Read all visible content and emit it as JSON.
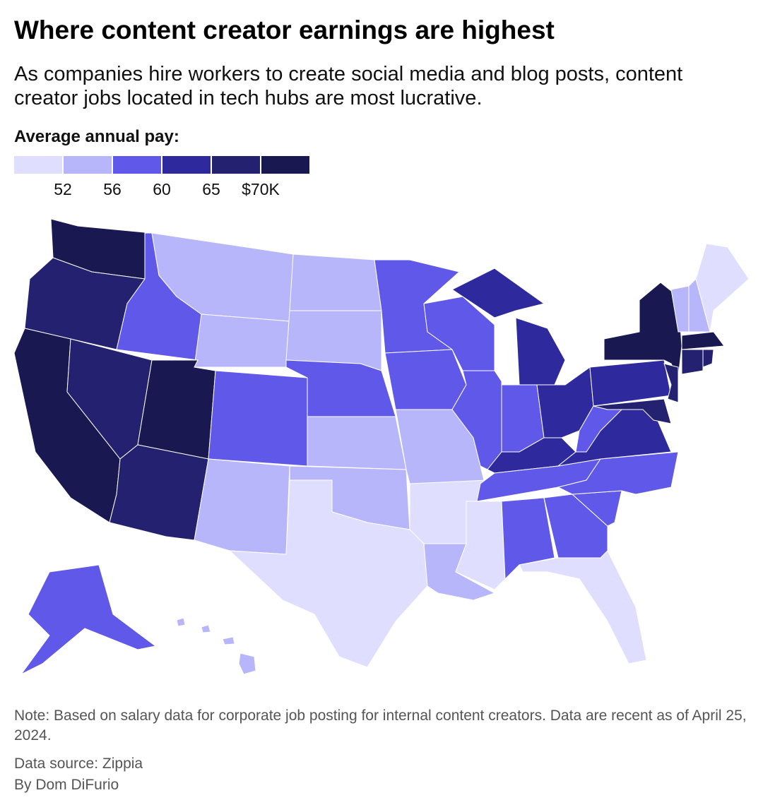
{
  "title": "Where content creator earnings are highest",
  "subtitle": "As companies hire workers to create social media and blog posts, content creator jobs located in tech hubs are most lucrative.",
  "legend": {
    "title": "Average annual pay:",
    "colors": [
      "#e0deff",
      "#b8b6fb",
      "#5f58e8",
      "#2e2a9e",
      "#242170",
      "#1a1850"
    ],
    "breaks": [
      52,
      56,
      60,
      65,
      {
        "value": 70,
        "label": "$70K"
      }
    ]
  },
  "regions": [
    {
      "color": "#1a1850"
    },
    {
      "color": "#242170"
    },
    {
      "color": "#1a1850"
    },
    {
      "color": "#242170"
    },
    {
      "color": "#5f58e8"
    },
    {
      "color": "#b8b6fb"
    },
    {
      "color": "#b8b6fb"
    },
    {
      "color": "#1a1850"
    },
    {
      "color": "#242170"
    },
    {
      "color": "#5f58e8"
    },
    {
      "color": "#b8b6fb"
    },
    {
      "color": "#b8b6fb"
    },
    {
      "color": "#b8b6fb"
    },
    {
      "color": "#5f58e8"
    },
    {
      "color": "#b8b6fb"
    },
    {
      "color": "#b8b6fb"
    },
    {
      "color": "#e0deff"
    },
    {
      "color": "#5f58e8"
    },
    {
      "color": "#5f58e8"
    },
    {
      "color": "#b8b6fb"
    },
    {
      "color": "#e0deff"
    },
    {
      "color": "#b8b6fb"
    },
    {
      "color": "#5f58e8"
    },
    {
      "color": "#5f58e8"
    },
    {
      "color": "#2e2a9e"
    },
    {
      "color": "#2e2a9e"
    },
    {
      "color": "#5f58e8"
    },
    {
      "color": "#2e2a9e"
    },
    {
      "color": "#2e2a9e"
    },
    {
      "color": "#5f58e8"
    },
    {
      "color": "#e0deff"
    },
    {
      "color": "#5f58e8"
    },
    {
      "color": "#5f58e8"
    },
    {
      "color": "#e0deff"
    },
    {
      "color": "#5f58e8"
    },
    {
      "color": "#5f58e8"
    },
    {
      "color": "#2e2a9e"
    },
    {
      "color": "#5f58e8"
    },
    {
      "color": "#2e2a9e"
    },
    {
      "color": "#1a1850"
    },
    {
      "color": "#242170"
    },
    {
      "color": "#242170"
    },
    {
      "color": "#b8b6fb"
    },
    {
      "color": "#b8b6fb"
    },
    {
      "color": "#e0deff"
    },
    {
      "color": "#1a1850"
    },
    {
      "color": "#242170"
    },
    {
      "color": "#242170"
    },
    {
      "color": "#5f58e8"
    },
    {
      "color": "#b8b6fb"
    }
  ],
  "note": "Note: Based on salary data for corporate job posting for internal content creators. Data are recent as of April 25, 2024.",
  "source": "Data source: Zippia",
  "byline": "By Dom DiFurio"
}
